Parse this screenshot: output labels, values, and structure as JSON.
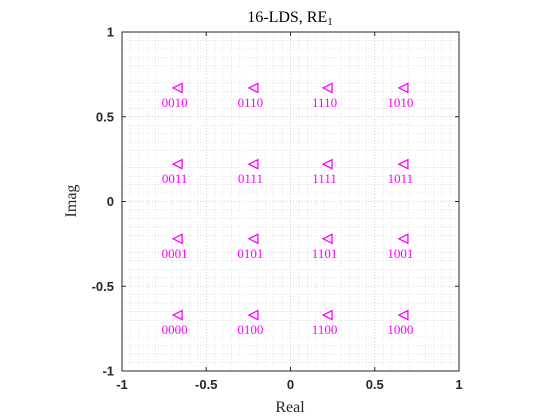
{
  "chart_data": {
    "type": "scatter",
    "title": "16-LDS, RE",
    "title_subscript": "1",
    "xlabel": "Real",
    "ylabel": "Imag",
    "xlim": [
      -1,
      1
    ],
    "ylim": [
      -1,
      1
    ],
    "xticks": [
      -1,
      -0.5,
      0,
      0.5,
      1
    ],
    "yticks": [
      -1,
      -0.5,
      0,
      0.5,
      1
    ],
    "xtick_labels": [
      "-1",
      "-0.5",
      "0",
      "0.5",
      "1"
    ],
    "ytick_labels": [
      "-1",
      "-0.5",
      "0",
      "0.5",
      "1"
    ],
    "grid": true,
    "minor_grid": true,
    "marker": "triangle-left",
    "marker_color": "#ff00ff",
    "points": [
      {
        "x": -0.67,
        "y": 0.67,
        "label": "0010"
      },
      {
        "x": -0.22,
        "y": 0.67,
        "label": "0110"
      },
      {
        "x": 0.22,
        "y": 0.67,
        "label": "1110"
      },
      {
        "x": 0.67,
        "y": 0.67,
        "label": "1010"
      },
      {
        "x": -0.67,
        "y": 0.22,
        "label": "0011"
      },
      {
        "x": -0.22,
        "y": 0.22,
        "label": "0111"
      },
      {
        "x": 0.22,
        "y": 0.22,
        "label": "1111"
      },
      {
        "x": 0.67,
        "y": 0.22,
        "label": "1011"
      },
      {
        "x": -0.67,
        "y": -0.22,
        "label": "0001"
      },
      {
        "x": -0.22,
        "y": -0.22,
        "label": "0101"
      },
      {
        "x": 0.22,
        "y": -0.22,
        "label": "1101"
      },
      {
        "x": 0.67,
        "y": -0.22,
        "label": "1001"
      },
      {
        "x": -0.67,
        "y": -0.67,
        "label": "0000"
      },
      {
        "x": -0.22,
        "y": -0.67,
        "label": "0100"
      },
      {
        "x": 0.22,
        "y": -0.67,
        "label": "1100"
      },
      {
        "x": 0.67,
        "y": -0.67,
        "label": "1000"
      }
    ]
  }
}
